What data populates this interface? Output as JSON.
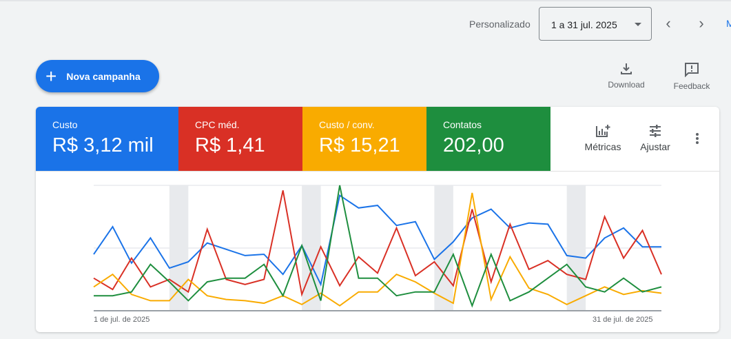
{
  "header": {
    "period_label": "Personalizado",
    "date_range": "1 a 31 jul. 2025",
    "more_link": "M"
  },
  "actions": {
    "new_campaign": "Nova campanha",
    "download": "Download",
    "feedback": "Feedback"
  },
  "metrics": [
    {
      "label": "Custo",
      "value": "R$ 3,12 mil",
      "color": "#1a73e8"
    },
    {
      "label": "CPC méd.",
      "value": "R$ 1,41",
      "color": "#d93025"
    },
    {
      "label": "Custo / conv.",
      "value": "R$ 15,21",
      "color": "#f9ab00"
    },
    {
      "label": "Contatos",
      "value": "202,00",
      "color": "#1e8e3e"
    }
  ],
  "card_tools": {
    "metrics": "Métricas",
    "adjust": "Ajustar"
  },
  "chart_data": {
    "type": "line",
    "x_start_label": "1 de jul. de 2025",
    "x_end_label": "31 de jul. de 2025",
    "x": [
      1,
      2,
      3,
      4,
      5,
      6,
      7,
      8,
      9,
      10,
      11,
      12,
      13,
      14,
      15,
      16,
      17,
      18,
      19,
      20,
      21,
      22,
      23,
      24,
      25,
      26,
      27,
      28,
      29,
      30,
      31
    ],
    "weekend_days": [
      5,
      6,
      12,
      13,
      19,
      20,
      26,
      27
    ],
    "ylim": [
      0,
      100
    ],
    "grid": true,
    "series": [
      {
        "metric": "Custo",
        "color": "#1a73e8",
        "values": [
          45,
          67,
          38,
          58,
          34,
          39,
          54,
          49,
          44,
          45,
          29,
          52,
          21,
          92,
          82,
          84,
          68,
          71,
          41,
          55,
          74,
          81,
          66,
          70,
          69,
          44,
          42,
          58,
          66,
          51,
          51
        ]
      },
      {
        "metric": "CPC méd.",
        "color": "#d93025",
        "values": [
          26,
          17,
          42,
          19,
          25,
          15,
          65,
          25,
          21,
          25,
          96,
          13,
          51,
          20,
          43,
          30,
          66,
          28,
          39,
          20,
          81,
          23,
          69,
          33,
          40,
          29,
          25,
          75,
          42,
          64,
          29
        ]
      },
      {
        "metric": "Custo / conv.",
        "color": "#f9ab00",
        "values": [
          19,
          29,
          13,
          8,
          8,
          25,
          12,
          9,
          8,
          6,
          12,
          5,
          14,
          4,
          15,
          15,
          29,
          23,
          14,
          6,
          94,
          9,
          43,
          18,
          13,
          5,
          12,
          19,
          13,
          16,
          14
        ]
      },
      {
        "metric": "Contatos",
        "color": "#1e8e3e",
        "values": [
          12,
          12,
          15,
          37,
          23,
          8,
          23,
          26,
          26,
          37,
          12,
          52,
          8,
          100,
          26,
          26,
          12,
          15,
          15,
          45,
          4,
          45,
          8,
          15,
          26,
          37,
          19,
          15,
          26,
          15,
          19
        ]
      }
    ]
  }
}
